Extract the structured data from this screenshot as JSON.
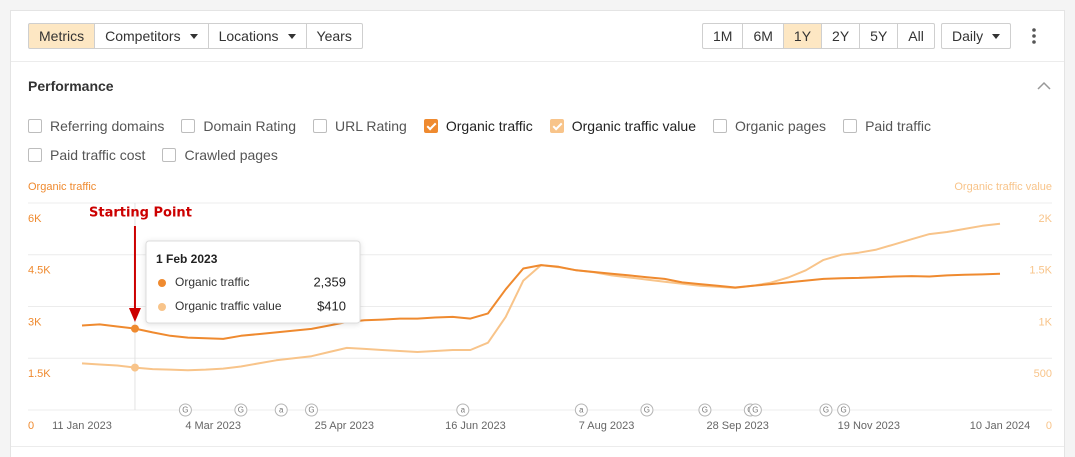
{
  "toolbar": {
    "tabs": [
      {
        "label": "Metrics",
        "active": true
      },
      {
        "label": "Competitors",
        "dropdown": true
      },
      {
        "label": "Locations",
        "dropdown": true
      },
      {
        "label": "Years"
      }
    ],
    "ranges": [
      {
        "label": "1M"
      },
      {
        "label": "6M"
      },
      {
        "label": "1Y",
        "active": true
      },
      {
        "label": "2Y"
      },
      {
        "label": "5Y"
      },
      {
        "label": "All"
      }
    ],
    "interval": "Daily"
  },
  "section_title": "Performance",
  "metrics": [
    {
      "label": "Referring domains",
      "checked": false
    },
    {
      "label": "Domain Rating",
      "checked": false
    },
    {
      "label": "URL Rating",
      "checked": false
    },
    {
      "label": "Organic traffic",
      "checked": true,
      "color": "#ef8a2f"
    },
    {
      "label": "Organic traffic value",
      "checked": true,
      "color": "#f8c48a"
    },
    {
      "label": "Organic pages",
      "checked": false
    },
    {
      "label": "Paid traffic",
      "checked": false
    },
    {
      "label": "Paid traffic cost",
      "checked": false
    },
    {
      "label": "Crawled pages",
      "checked": false
    }
  ],
  "chart_data": {
    "type": "line",
    "y_label": "Organic traffic",
    "y2_label": "Organic traffic value",
    "annotation": "Starting Point",
    "grid": true,
    "x": [
      "2023-01-11",
      "2023-01-18",
      "2023-01-25",
      "2023-02-01",
      "2023-02-08",
      "2023-02-15",
      "2023-02-22",
      "2023-03-01",
      "2023-03-08",
      "2023-03-15",
      "2023-03-22",
      "2023-03-29",
      "2023-04-05",
      "2023-04-12",
      "2023-04-19",
      "2023-04-26",
      "2023-05-03",
      "2023-05-10",
      "2023-05-17",
      "2023-05-24",
      "2023-05-31",
      "2023-06-07",
      "2023-06-14",
      "2023-06-21",
      "2023-06-28",
      "2023-07-05",
      "2023-07-12",
      "2023-07-19",
      "2023-07-26",
      "2023-08-02",
      "2023-08-09",
      "2023-08-16",
      "2023-08-23",
      "2023-08-30",
      "2023-09-06",
      "2023-09-13",
      "2023-09-20",
      "2023-09-27",
      "2023-10-04",
      "2023-10-11",
      "2023-10-18",
      "2023-10-25",
      "2023-11-01",
      "2023-11-08",
      "2023-11-15",
      "2023-11-22",
      "2023-11-29",
      "2023-12-06",
      "2023-12-13",
      "2023-12-20",
      "2023-12-27",
      "2024-01-03",
      "2024-01-10"
    ],
    "series": [
      {
        "name": "Organic traffic",
        "color": "#ef8a2f",
        "values": [
          2450,
          2480,
          2420,
          2359,
          2250,
          2150,
          2100,
          2080,
          2060,
          2150,
          2200,
          2250,
          2300,
          2350,
          2450,
          2550,
          2600,
          2620,
          2650,
          2650,
          2680,
          2700,
          2650,
          2800,
          3500,
          4100,
          4200,
          4150,
          4050,
          4000,
          3950,
          3900,
          3850,
          3800,
          3700,
          3650,
          3600,
          3550,
          3600,
          3650,
          3700,
          3750,
          3800,
          3820,
          3830,
          3850,
          3870,
          3880,
          3870,
          3900,
          3920,
          3930,
          3950
        ]
      },
      {
        "name": "Organic traffic value",
        "color": "#f8c48a",
        "axis": "y2",
        "values": [
          450,
          440,
          430,
          410,
          395,
          390,
          385,
          390,
          400,
          420,
          450,
          480,
          500,
          520,
          560,
          600,
          590,
          580,
          570,
          560,
          570,
          580,
          580,
          650,
          900,
          1250,
          1400,
          1380,
          1350,
          1330,
          1300,
          1280,
          1260,
          1240,
          1220,
          1200,
          1190,
          1180,
          1200,
          1230,
          1280,
          1350,
          1450,
          1500,
          1520,
          1550,
          1600,
          1650,
          1700,
          1720,
          1750,
          1780,
          1800
        ]
      }
    ],
    "xlim": [
      "2023-01-11",
      "2024-01-10"
    ],
    "xticks": [
      {
        "value": "2023-01-11",
        "label": "11 Jan 2023"
      },
      {
        "value": "2023-03-04",
        "label": "4 Mar 2023"
      },
      {
        "value": "2023-04-25",
        "label": "25 Apr 2023"
      },
      {
        "value": "2023-06-16",
        "label": "16 Jun 2023"
      },
      {
        "value": "2023-08-07",
        "label": "7 Aug 2023"
      },
      {
        "value": "2023-09-28",
        "label": "28 Sep 2023"
      },
      {
        "value": "2023-11-19",
        "label": "19 Nov 2023"
      },
      {
        "value": "2024-01-10",
        "label": "10 Jan 2024"
      }
    ],
    "ylim": [
      0,
      6000
    ],
    "yticks": [
      0,
      {
        "value": 1500,
        "label": "1.5K"
      },
      {
        "value": 3000,
        "label": "3K"
      },
      {
        "value": 4500,
        "label": "4.5K"
      },
      {
        "value": 6000,
        "label": "6K"
      }
    ],
    "y2lim": [
      0,
      2000
    ],
    "y2ticks": [
      0,
      500,
      {
        "value": 1000,
        "label": "1K"
      },
      {
        "value": 1500,
        "label": "1.5K"
      },
      {
        "value": 2000,
        "label": "2K"
      }
    ],
    "events": [
      {
        "date": "2023-02-21",
        "label": "G"
      },
      {
        "date": "2023-03-15",
        "label": "G"
      },
      {
        "date": "2023-03-31",
        "label": "a"
      },
      {
        "date": "2023-04-12",
        "label": "G"
      },
      {
        "date": "2023-06-11",
        "label": "a"
      },
      {
        "date": "2023-07-28",
        "label": "a"
      },
      {
        "date": "2023-08-23",
        "label": "G"
      },
      {
        "date": "2023-09-15",
        "label": "G"
      },
      {
        "date": "2023-10-03",
        "label": "G"
      },
      {
        "date": "2023-10-05",
        "label": "G"
      },
      {
        "date": "2023-11-02",
        "label": "G"
      },
      {
        "date": "2023-11-09",
        "label": "G"
      }
    ],
    "tooltip": {
      "date": "2023-02-01",
      "title": "1 Feb 2023",
      "rows": [
        {
          "value": 2359,
          "label": "2,359"
        },
        {
          "value": 410,
          "label": "$410"
        }
      ]
    }
  }
}
